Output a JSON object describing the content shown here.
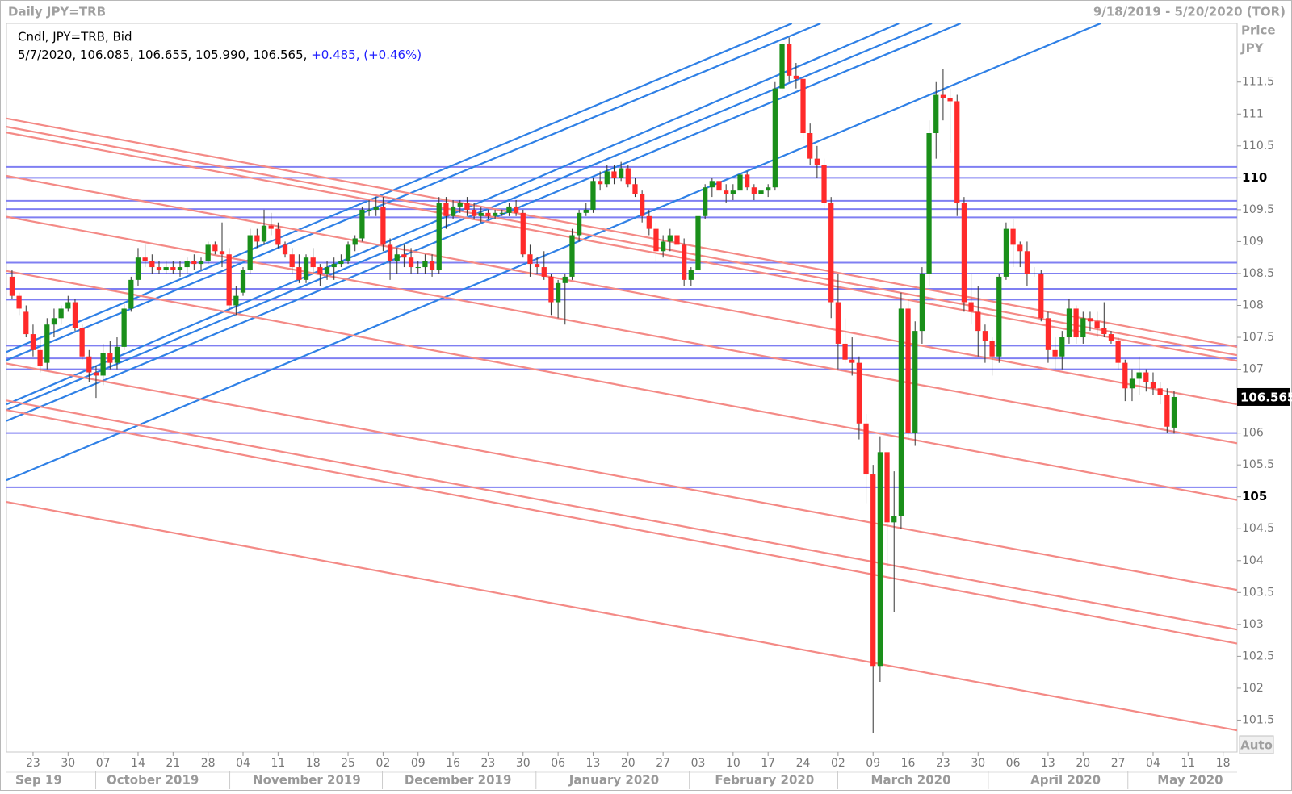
{
  "header": {
    "title": "Daily JPY=TRB",
    "range": "9/18/2019 - 5/20/2020 (TOR)",
    "axis_title_1": "Price",
    "axis_title_2": "JPY",
    "auto_button": "Auto"
  },
  "legend": {
    "line1": "Cndl, JPY=TRB, Bid",
    "line2": "5/7/2020, 106.085, 106.655, 105.990, 106.565,",
    "change": "+0.485, (+0.46%)"
  },
  "chart_data": {
    "type": "candlestick",
    "up_color": "#1a8f1a",
    "down_color": "#ff2a2a",
    "wick_color": "#333333",
    "xlim": [
      -0.8,
      175
    ],
    "ylim": [
      101.0,
      112.42
    ],
    "yticks": [
      101.5,
      102,
      102.5,
      103,
      103.5,
      104,
      104.5,
      105,
      105.5,
      106,
      106.5,
      107,
      107.5,
      108,
      108.5,
      109,
      109.5,
      110,
      110.5,
      111,
      111.5
    ],
    "xticks": [
      {
        "value": 3,
        "label": "23"
      },
      {
        "value": 8,
        "label": "30"
      },
      {
        "value": 13,
        "label": "07"
      },
      {
        "value": 18,
        "label": "14"
      },
      {
        "value": 23,
        "label": "21"
      },
      {
        "value": 28,
        "label": "28"
      },
      {
        "value": 33,
        "label": "04"
      },
      {
        "value": 38,
        "label": "11"
      },
      {
        "value": 43,
        "label": "18"
      },
      {
        "value": 48,
        "label": "25"
      },
      {
        "value": 53,
        "label": "02"
      },
      {
        "value": 58,
        "label": "09"
      },
      {
        "value": 63,
        "label": "16"
      },
      {
        "value": 68,
        "label": "23"
      },
      {
        "value": 73,
        "label": "30"
      },
      {
        "value": 78,
        "label": "06"
      },
      {
        "value": 83,
        "label": "13"
      },
      {
        "value": 88,
        "label": "20"
      },
      {
        "value": 93,
        "label": "27"
      },
      {
        "value": 98,
        "label": "03"
      },
      {
        "value": 103,
        "label": "10"
      },
      {
        "value": 108,
        "label": "17"
      },
      {
        "value": 113,
        "label": "24"
      },
      {
        "value": 118,
        "label": "02"
      },
      {
        "value": 123,
        "label": "09"
      },
      {
        "value": 128,
        "label": "16"
      },
      {
        "value": 133,
        "label": "23"
      },
      {
        "value": 138,
        "label": "30"
      },
      {
        "value": 143,
        "label": "06"
      },
      {
        "value": 148,
        "label": "13"
      },
      {
        "value": 153,
        "label": "20"
      },
      {
        "value": 158,
        "label": "27"
      },
      {
        "value": 163,
        "label": "04"
      },
      {
        "value": 168,
        "label": "11"
      },
      {
        "value": 173,
        "label": "18"
      }
    ],
    "months": [
      {
        "value": 3.8,
        "label": "Sep 19"
      },
      {
        "value": 20.1,
        "label": "October 2019"
      },
      {
        "value": 42.1,
        "label": "November 2019"
      },
      {
        "value": 63.7,
        "label": "December 2019"
      },
      {
        "value": 86.0,
        "label": "January 2020"
      },
      {
        "value": 107.5,
        "label": "February 2020"
      },
      {
        "value": 128.4,
        "label": "March 2020"
      },
      {
        "value": 150.5,
        "label": "April 2020"
      },
      {
        "value": 168.3,
        "label": "May 2020"
      }
    ],
    "ohlc": [
      [
        108.45,
        108.55,
        108.1,
        108.15
      ],
      [
        108.15,
        108.2,
        107.85,
        107.95
      ],
      [
        107.9,
        108.0,
        107.5,
        107.55
      ],
      [
        107.55,
        107.7,
        107.2,
        107.3
      ],
      [
        107.3,
        107.5,
        106.95,
        107.05
      ],
      [
        107.1,
        107.8,
        107.0,
        107.7
      ],
      [
        107.7,
        107.95,
        107.5,
        107.8
      ],
      [
        107.8,
        108.0,
        107.7,
        107.95
      ],
      [
        107.95,
        108.15,
        107.9,
        108.05
      ],
      [
        108.05,
        108.1,
        107.6,
        107.65
      ],
      [
        107.65,
        107.7,
        107.15,
        107.2
      ],
      [
        107.2,
        107.3,
        106.8,
        106.95
      ],
      [
        106.95,
        107.05,
        106.55,
        106.9
      ],
      [
        106.9,
        107.4,
        106.75,
        107.25
      ],
      [
        107.25,
        107.45,
        107.0,
        107.1
      ],
      [
        107.1,
        107.5,
        107.0,
        107.35
      ],
      [
        107.35,
        108.05,
        107.3,
        107.95
      ],
      [
        107.95,
        108.45,
        107.9,
        108.4
      ],
      [
        108.4,
        108.9,
        108.3,
        108.75
      ],
      [
        108.75,
        108.95,
        108.6,
        108.7
      ],
      [
        108.7,
        108.8,
        108.5,
        108.6
      ],
      [
        108.6,
        108.7,
        108.5,
        108.55
      ],
      [
        108.55,
        108.7,
        108.5,
        108.6
      ],
      [
        108.6,
        108.7,
        108.5,
        108.55
      ],
      [
        108.55,
        108.7,
        108.45,
        108.6
      ],
      [
        108.6,
        108.75,
        108.5,
        108.7
      ],
      [
        108.7,
        108.8,
        108.55,
        108.65
      ],
      [
        108.65,
        108.75,
        108.55,
        108.7
      ],
      [
        108.7,
        109.0,
        108.65,
        108.95
      ],
      [
        108.95,
        109.0,
        108.8,
        108.85
      ],
      [
        108.85,
        109.3,
        108.6,
        108.8
      ],
      [
        108.8,
        108.9,
        107.9,
        108.0
      ],
      [
        108.0,
        108.3,
        107.85,
        108.15
      ],
      [
        108.2,
        108.6,
        108.15,
        108.55
      ],
      [
        108.55,
        109.2,
        108.5,
        109.1
      ],
      [
        109.1,
        109.2,
        108.9,
        109.0
      ],
      [
        109.0,
        109.5,
        108.95,
        109.25
      ],
      [
        109.25,
        109.45,
        109.1,
        109.2
      ],
      [
        109.2,
        109.3,
        108.9,
        108.95
      ],
      [
        108.95,
        109.0,
        108.75,
        108.8
      ],
      [
        108.8,
        108.9,
        108.5,
        108.6
      ],
      [
        108.6,
        108.8,
        108.35,
        108.4
      ],
      [
        108.4,
        108.8,
        108.35,
        108.75
      ],
      [
        108.75,
        108.9,
        108.5,
        108.6
      ],
      [
        108.6,
        108.65,
        108.3,
        108.5
      ],
      [
        108.5,
        108.7,
        108.4,
        108.6
      ],
      [
        108.6,
        108.75,
        108.4,
        108.65
      ],
      [
        108.65,
        108.8,
        108.6,
        108.7
      ],
      [
        108.7,
        109.0,
        108.65,
        108.95
      ],
      [
        108.95,
        109.1,
        108.85,
        109.05
      ],
      [
        109.05,
        109.55,
        109.0,
        109.5
      ],
      [
        109.5,
        109.65,
        109.4,
        109.5
      ],
      [
        109.5,
        109.7,
        109.4,
        109.55
      ],
      [
        109.55,
        109.7,
        108.85,
        108.95
      ],
      [
        108.95,
        109.05,
        108.4,
        108.7
      ],
      [
        108.7,
        108.9,
        108.5,
        108.8
      ],
      [
        108.8,
        108.95,
        108.6,
        108.75
      ],
      [
        108.75,
        108.9,
        108.5,
        108.6
      ],
      [
        108.6,
        108.7,
        108.5,
        108.6
      ],
      [
        108.6,
        108.8,
        108.5,
        108.7
      ],
      [
        108.7,
        108.8,
        108.45,
        108.55
      ],
      [
        108.55,
        109.7,
        108.5,
        109.6
      ],
      [
        109.6,
        109.7,
        109.2,
        109.4
      ],
      [
        109.4,
        109.65,
        109.35,
        109.55
      ],
      [
        109.55,
        109.65,
        109.45,
        109.6
      ],
      [
        109.6,
        109.7,
        109.4,
        109.5
      ],
      [
        109.5,
        109.6,
        109.35,
        109.4
      ],
      [
        109.4,
        109.55,
        109.3,
        109.45
      ],
      [
        109.45,
        109.5,
        109.35,
        109.4
      ],
      [
        109.4,
        109.5,
        109.35,
        109.45
      ],
      [
        109.45,
        109.5,
        109.4,
        109.45
      ],
      [
        109.45,
        109.6,
        109.4,
        109.55
      ],
      [
        109.55,
        109.65,
        109.4,
        109.45
      ],
      [
        109.45,
        109.5,
        108.75,
        108.8
      ],
      [
        108.8,
        108.95,
        108.45,
        108.65
      ],
      [
        108.65,
        108.75,
        108.5,
        108.6
      ],
      [
        108.6,
        108.85,
        108.4,
        108.45
      ],
      [
        108.45,
        108.5,
        107.85,
        108.05
      ],
      [
        108.05,
        108.4,
        107.8,
        108.35
      ],
      [
        108.35,
        108.5,
        107.7,
        108.45
      ],
      [
        108.45,
        109.2,
        108.4,
        109.1
      ],
      [
        109.1,
        109.5,
        109.0,
        109.45
      ],
      [
        109.45,
        109.6,
        109.4,
        109.5
      ],
      [
        109.5,
        110.0,
        109.45,
        109.95
      ],
      [
        109.95,
        110.1,
        109.8,
        109.9
      ],
      [
        109.9,
        110.2,
        109.85,
        110.1
      ],
      [
        110.1,
        110.2,
        109.9,
        110.0
      ],
      [
        110.0,
        110.25,
        109.95,
        110.15
      ],
      [
        110.15,
        110.2,
        109.85,
        109.9
      ],
      [
        109.9,
        110.0,
        109.7,
        109.75
      ],
      [
        109.75,
        109.8,
        109.3,
        109.4
      ],
      [
        109.4,
        109.5,
        109.1,
        109.2
      ],
      [
        109.2,
        109.3,
        108.7,
        108.85
      ],
      [
        108.85,
        109.1,
        108.75,
        109.0
      ],
      [
        109.0,
        109.2,
        108.85,
        109.1
      ],
      [
        109.1,
        109.2,
        108.85,
        108.95
      ],
      [
        108.95,
        109.05,
        108.3,
        108.4
      ],
      [
        108.4,
        108.6,
        108.3,
        108.55
      ],
      [
        108.55,
        109.5,
        108.5,
        109.4
      ],
      [
        109.4,
        109.9,
        109.35,
        109.85
      ],
      [
        109.85,
        110.0,
        109.7,
        109.95
      ],
      [
        109.95,
        110.05,
        109.75,
        109.8
      ],
      [
        109.8,
        109.9,
        109.6,
        109.75
      ],
      [
        109.75,
        109.9,
        109.65,
        109.8
      ],
      [
        109.8,
        110.15,
        109.75,
        110.05
      ],
      [
        110.05,
        110.1,
        109.8,
        109.85
      ],
      [
        109.85,
        109.9,
        109.65,
        109.75
      ],
      [
        109.75,
        109.85,
        109.65,
        109.8
      ],
      [
        109.8,
        109.9,
        109.7,
        109.85
      ],
      [
        109.85,
        111.5,
        109.8,
        111.4
      ],
      [
        111.4,
        112.2,
        111.35,
        112.1
      ],
      [
        112.1,
        112.2,
        111.5,
        111.6
      ],
      [
        111.6,
        111.8,
        111.4,
        111.55
      ],
      [
        111.55,
        111.6,
        110.6,
        110.7
      ],
      [
        110.7,
        110.85,
        110.2,
        110.3
      ],
      [
        110.3,
        110.5,
        110.0,
        110.2
      ],
      [
        110.2,
        110.3,
        109.5,
        109.6
      ],
      [
        109.6,
        109.7,
        107.8,
        108.05
      ],
      [
        108.05,
        108.5,
        107.0,
        107.4
      ],
      [
        107.4,
        107.8,
        107.1,
        107.15
      ],
      [
        107.15,
        107.5,
        106.9,
        107.1
      ],
      [
        107.1,
        107.2,
        105.9,
        106.15
      ],
      [
        106.15,
        106.3,
        104.9,
        105.35
      ],
      [
        105.35,
        105.5,
        101.3,
        102.35
      ],
      [
        102.35,
        105.95,
        102.1,
        105.7
      ],
      [
        105.7,
        105.7,
        103.9,
        104.6
      ],
      [
        104.6,
        105.4,
        103.2,
        104.7
      ],
      [
        104.7,
        108.2,
        104.5,
        107.95
      ],
      [
        107.95,
        108.1,
        105.9,
        106.0
      ],
      [
        106.0,
        107.75,
        105.8,
        107.6
      ],
      [
        107.6,
        108.6,
        107.4,
        108.5
      ],
      [
        108.5,
        110.9,
        108.3,
        110.7
      ],
      [
        110.7,
        111.5,
        110.3,
        111.3
      ],
      [
        111.3,
        111.7,
        110.9,
        111.25
      ],
      [
        111.25,
        111.4,
        110.4,
        111.2
      ],
      [
        111.2,
        111.3,
        109.4,
        109.6
      ],
      [
        109.6,
        109.7,
        107.9,
        108.05
      ],
      [
        108.05,
        108.5,
        107.7,
        107.9
      ],
      [
        107.9,
        108.3,
        107.2,
        107.6
      ],
      [
        107.6,
        107.7,
        107.1,
        107.45
      ],
      [
        107.45,
        107.5,
        106.9,
        107.2
      ],
      [
        107.2,
        108.5,
        107.1,
        108.45
      ],
      [
        108.45,
        109.3,
        108.4,
        109.2
      ],
      [
        109.2,
        109.35,
        108.6,
        108.95
      ],
      [
        108.95,
        109.0,
        108.6,
        108.85
      ],
      [
        108.85,
        109.0,
        108.3,
        108.5
      ],
      [
        108.5,
        108.6,
        108.45,
        108.5
      ],
      [
        108.5,
        108.55,
        107.75,
        107.8
      ],
      [
        107.8,
        107.9,
        107.1,
        107.3
      ],
      [
        107.3,
        107.5,
        107.0,
        107.2
      ],
      [
        107.2,
        107.6,
        107.0,
        107.5
      ],
      [
        107.5,
        108.1,
        107.4,
        107.95
      ],
      [
        107.95,
        108.0,
        107.4,
        107.5
      ],
      [
        107.5,
        107.9,
        107.4,
        107.8
      ],
      [
        107.8,
        107.9,
        107.6,
        107.75
      ],
      [
        107.75,
        107.9,
        107.5,
        107.65
      ],
      [
        107.65,
        108.05,
        107.5,
        107.55
      ],
      [
        107.55,
        107.6,
        107.4,
        107.45
      ],
      [
        107.45,
        107.5,
        107.0,
        107.1
      ],
      [
        107.1,
        107.15,
        106.5,
        106.7
      ],
      [
        106.7,
        107.0,
        106.5,
        106.85
      ],
      [
        106.85,
        107.2,
        106.6,
        106.95
      ],
      [
        106.95,
        107.0,
        106.65,
        106.8
      ],
      [
        106.8,
        106.95,
        106.6,
        106.7
      ],
      [
        106.7,
        106.8,
        106.45,
        106.6
      ],
      [
        106.6,
        106.7,
        106.0,
        106.1
      ],
      [
        106.085,
        106.655,
        105.99,
        106.565
      ]
    ],
    "hline_color": "#7f7ff2",
    "hlines": [
      110.17,
      110.0,
      109.64,
      109.51,
      109.38,
      108.67,
      108.5,
      108.26,
      108.09,
      107.37,
      107.17,
      107.0,
      106.0,
      105.15
    ],
    "trendlines": [
      {
        "color": "#2f80e6",
        "x": [
          -0.8,
          111.4
        ],
        "y": [
          107.27,
          112.42
        ]
      },
      {
        "color": "#2f80e6",
        "x": [
          -0.8,
          115.5
        ],
        "y": [
          107.14,
          112.42
        ]
      },
      {
        "color": "#2f80e6",
        "x": [
          -0.8,
          126.7
        ],
        "y": [
          106.45,
          112.42
        ]
      },
      {
        "color": "#2f80e6",
        "x": [
          -0.8,
          131.4
        ],
        "y": [
          106.36,
          112.42
        ]
      },
      {
        "color": "#2f80e6",
        "x": [
          -0.8,
          135.5
        ],
        "y": [
          106.19,
          112.42
        ]
      },
      {
        "color": "#2f80e6",
        "x": [
          -0.8,
          155.5
        ],
        "y": [
          105.26,
          112.42
        ]
      },
      {
        "color": "#f48a86",
        "x": [
          -0.8,
          175
        ],
        "y": [
          110.93,
          107.35
        ]
      },
      {
        "color": "#f48a86",
        "x": [
          -0.8,
          175
        ],
        "y": [
          110.8,
          107.22
        ]
      },
      {
        "color": "#f48a86",
        "x": [
          -0.8,
          175
        ],
        "y": [
          110.71,
          107.13
        ]
      },
      {
        "color": "#f48a86",
        "x": [
          -0.8,
          175
        ],
        "y": [
          110.03,
          106.45
        ]
      },
      {
        "color": "#f48a86",
        "x": [
          -0.8,
          175
        ],
        "y": [
          109.39,
          105.84
        ]
      },
      {
        "color": "#f48a86",
        "x": [
          -0.8,
          175
        ],
        "y": [
          108.54,
          104.95
        ]
      },
      {
        "color": "#f48a86",
        "x": [
          -0.8,
          175
        ],
        "y": [
          107.09,
          103.54
        ]
      },
      {
        "color": "#f48a86",
        "x": [
          -0.8,
          175
        ],
        "y": [
          106.51,
          102.92
        ]
      },
      {
        "color": "#f48a86",
        "x": [
          -0.8,
          175
        ],
        "y": [
          106.36,
          102.7
        ]
      },
      {
        "color": "#f48a86",
        "x": [
          -0.8,
          175
        ],
        "y": [
          104.92,
          101.34
        ]
      }
    ]
  }
}
